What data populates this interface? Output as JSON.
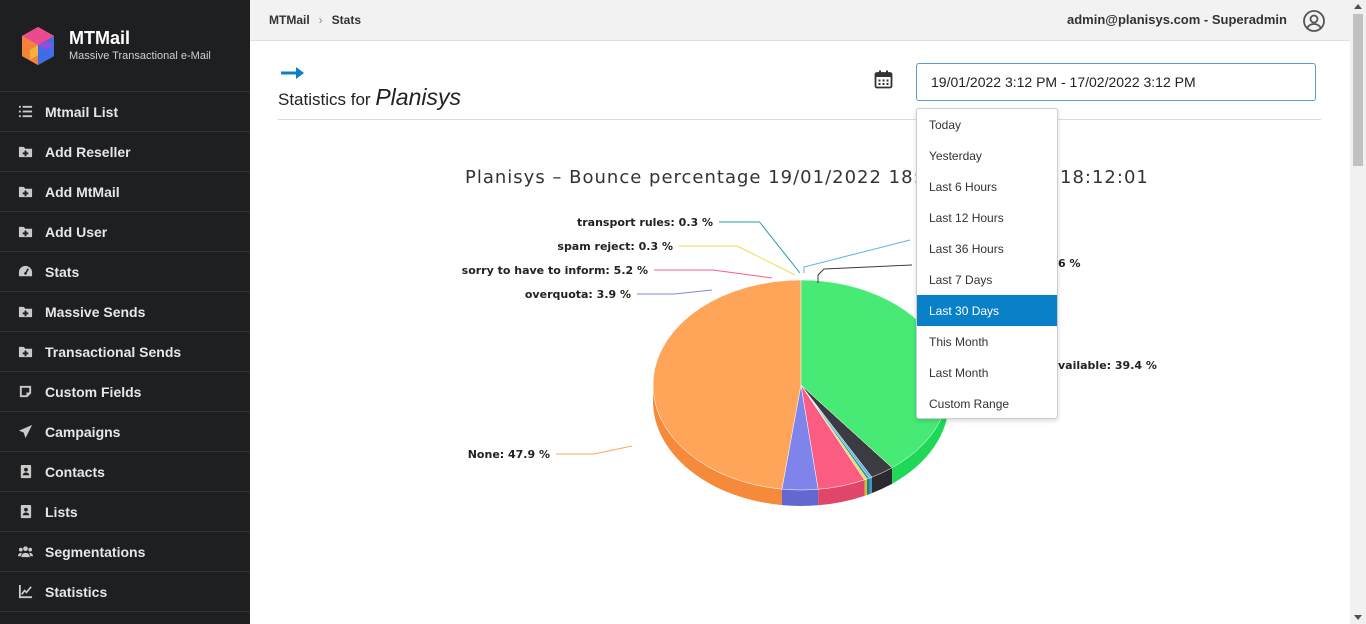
{
  "app": {
    "name": "MTMail",
    "subtitle": "Massive Transactional e-Mail"
  },
  "sidebar": {
    "items": [
      {
        "label": "Mtmail List",
        "icon": "list-icon"
      },
      {
        "label": "Add Reseller",
        "icon": "folder-plus-icon"
      },
      {
        "label": "Add MtMail",
        "icon": "folder-plus-icon"
      },
      {
        "label": "Add User",
        "icon": "folder-plus-icon"
      },
      {
        "label": "Stats",
        "icon": "gauge-icon"
      },
      {
        "label": "Massive Sends",
        "icon": "folder-plus-icon"
      },
      {
        "label": "Transactional Sends",
        "icon": "folder-plus-icon"
      },
      {
        "label": "Custom Fields",
        "icon": "note-icon"
      },
      {
        "label": "Campaigns",
        "icon": "paper-plane-icon"
      },
      {
        "label": "Contacts",
        "icon": "address-book-icon"
      },
      {
        "label": "Lists",
        "icon": "address-book-icon"
      },
      {
        "label": "Segmentations",
        "icon": "users-icon"
      },
      {
        "label": "Statistics",
        "icon": "line-chart-icon"
      }
    ]
  },
  "breadcrumb": {
    "root": "MTMail",
    "current": "Stats"
  },
  "user": {
    "label": "admin@planisys.com - Superadmin"
  },
  "page": {
    "title_prefix": "Statistics for",
    "title_name": "Planisys"
  },
  "date_range": {
    "value": "19/01/2022 3:12 PM - 17/02/2022 3:12 PM"
  },
  "range_menu": {
    "options": [
      "Today",
      "Yesterday",
      "Last 6 Hours",
      "Last 12 Hours",
      "Last 36 Hours",
      "Last 7 Days",
      "Last 30 Days",
      "This Month",
      "Last Month",
      "Custom Range"
    ],
    "selected": "Last 30 Days"
  },
  "colors": {
    "accent": "#0a80c8",
    "sidebar_bg": "#1e1f21"
  },
  "chart_data": {
    "type": "pie",
    "title_left": "Planisys – Bounce percentage 19/01/2022 18:12:0",
    "title_right": "18:12:01",
    "slices": [
      {
        "label_left": "None: 47.9 %",
        "value": 47.9,
        "color": "#fea55a",
        "side_color": "#f58b3a"
      },
      {
        "label_left": "overquota: 3.9 %",
        "value": 3.9,
        "color": "#7f84eb",
        "side_color": "#6368d1"
      },
      {
        "label_left": "sorry to have to inform: 5.2 %",
        "value": 5.2,
        "color": "#fb5c81",
        "side_color": "#e04668"
      },
      {
        "label_left": "spam reject: 0.3 %",
        "value": 0.3,
        "color": "#f4d94c",
        "side_color": "#d8bd33"
      },
      {
        "label_left": "transport rules: 0.3 %",
        "value": 0.3,
        "color": "#2a9da5",
        "side_color": "#1f8189"
      },
      {
        "label_left": "",
        "value": 0.3,
        "color": "#5ab3e8",
        "side_color": "#3e98cc"
      },
      {
        "label_left": "",
        "value": 2.6,
        "label_right": "6 %",
        "color": "#3b3b42",
        "side_color": "#2a2a30"
      },
      {
        "label_left": "",
        "value": 39.4,
        "label_right": "vailable: 39.4 %",
        "color": "#46ea75",
        "side_color": "#1fd858"
      }
    ]
  }
}
